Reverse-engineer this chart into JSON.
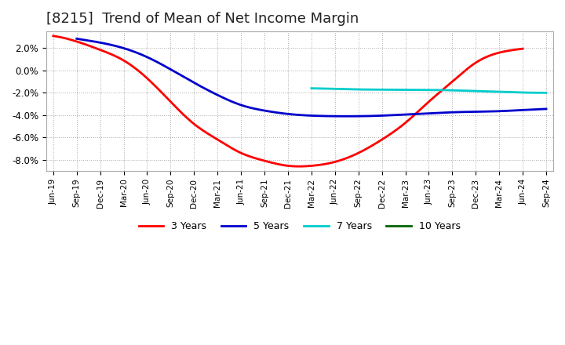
{
  "title": "[8215]  Trend of Mean of Net Income Margin",
  "title_fontsize": 13,
  "background_color": "#ffffff",
  "plot_bg_color": "#ffffff",
  "grid_color": "#aaaaaa",
  "ylim": [
    -9.0,
    3.5
  ],
  "yticks": [
    -8.0,
    -6.0,
    -4.0,
    -2.0,
    0.0,
    2.0
  ],
  "legend_entries": [
    "3 Years",
    "5 Years",
    "7 Years",
    "10 Years"
  ],
  "legend_colors": [
    "#ff0000",
    "#0000cc",
    "#00cccc",
    "#006600"
  ],
  "x_tick_labels": [
    "Jun-19",
    "Sep-19",
    "Dec-19",
    "Mar-20",
    "Jun-20",
    "Sep-20",
    "Dec-20",
    "Mar-21",
    "Jun-21",
    "Sep-21",
    "Dec-21",
    "Mar-22",
    "Jun-22",
    "Sep-22",
    "Dec-22",
    "Mar-23",
    "Jun-23",
    "Sep-23",
    "Dec-23",
    "Mar-24",
    "Jun-24",
    "Sep-24"
  ],
  "series_3yr": {
    "color": "#ff0000",
    "data_x": [
      0,
      1,
      2,
      3,
      4,
      5,
      6,
      7,
      8,
      9,
      10,
      11,
      12,
      13,
      14,
      15,
      16,
      17,
      18,
      19,
      20
    ],
    "data_y": [
      3.1,
      2.6,
      1.85,
      0.9,
      -0.7,
      -2.8,
      -4.8,
      -6.2,
      -7.4,
      -8.1,
      -8.55,
      -8.55,
      -8.2,
      -7.4,
      -6.2,
      -4.7,
      -2.8,
      -1.0,
      0.7,
      1.6,
      1.95
    ]
  },
  "series_5yr": {
    "color": "#0000cc",
    "data_x": [
      1,
      2,
      3,
      4,
      5,
      6,
      7,
      8,
      9,
      10,
      11,
      12,
      13,
      14,
      15,
      16,
      17,
      18,
      19,
      20,
      21
    ],
    "data_y": [
      2.85,
      2.5,
      2.0,
      1.2,
      0.1,
      -1.1,
      -2.2,
      -3.1,
      -3.6,
      -3.9,
      -4.05,
      -4.1,
      -4.1,
      -4.05,
      -3.95,
      -3.85,
      -3.75,
      -3.7,
      -3.65,
      -3.55,
      -3.45
    ]
  },
  "series_7yr": {
    "color": "#00cccc",
    "data_x": [
      11,
      12,
      13,
      14,
      15,
      16,
      17,
      18,
      19,
      20,
      21
    ],
    "data_y": [
      -1.6,
      -1.65,
      -1.7,
      -1.72,
      -1.73,
      -1.74,
      -1.78,
      -1.85,
      -1.92,
      -1.98,
      -2.0
    ]
  },
  "series_10yr": {
    "color": "#006600",
    "data_x": [],
    "data_y": []
  }
}
